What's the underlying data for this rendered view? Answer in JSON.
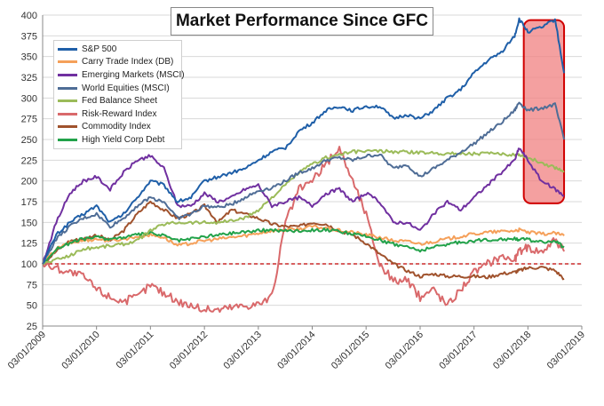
{
  "chart_data": {
    "type": "line",
    "title": "Market Performance Since GFC",
    "xlabel": "",
    "ylabel": "",
    "x_ticks": [
      "03/01/2009",
      "03/01/2010",
      "03/01/2011",
      "03/01/2012",
      "03/01/2013",
      "03/01/2014",
      "03/01/2015",
      "03/01/2016",
      "03/01/2017",
      "03/01/2018",
      "03/01/2019"
    ],
    "xlim": [
      "03/01/2009",
      "03/01/2019"
    ],
    "ylim": [
      25,
      400
    ],
    "y_ticks": [
      25,
      50,
      75,
      100,
      125,
      150,
      175,
      200,
      225,
      250,
      275,
      300,
      325,
      350,
      375,
      400
    ],
    "reference_line": {
      "y": 100,
      "style": "dashed",
      "color": "#c00000"
    },
    "highlight_box": {
      "x_start": "02/01/2018",
      "x_end": "11/01/2018",
      "color": "#f08080",
      "border": "#d00000"
    },
    "legend_position": "top-left",
    "x": [
      "03/01/2009",
      "06/01/2009",
      "09/01/2009",
      "12/01/2009",
      "03/01/2010",
      "06/01/2010",
      "09/01/2010",
      "12/01/2010",
      "03/01/2011",
      "06/01/2011",
      "09/01/2011",
      "12/01/2011",
      "03/01/2012",
      "06/01/2012",
      "09/01/2012",
      "12/01/2012",
      "03/01/2013",
      "06/01/2013",
      "09/01/2013",
      "12/01/2013",
      "03/01/2014",
      "06/01/2014",
      "09/01/2014",
      "12/01/2014",
      "03/01/2015",
      "06/01/2015",
      "09/01/2015",
      "12/01/2015",
      "03/01/2016",
      "06/01/2016",
      "09/01/2016",
      "12/01/2016",
      "03/01/2017",
      "06/01/2017",
      "09/01/2017",
      "12/01/2017",
      "01/01/2018",
      "03/01/2018",
      "06/01/2018",
      "09/01/2018",
      "11/01/2018"
    ],
    "series": [
      {
        "name": "S&P 500",
        "color": "#1f5fa8",
        "values": [
          100,
          135,
          150,
          160,
          170,
          150,
          160,
          180,
          200,
          195,
          175,
          180,
          200,
          205,
          210,
          215,
          225,
          235,
          240,
          260,
          270,
          285,
          290,
          285,
          290,
          290,
          275,
          280,
          275,
          285,
          300,
          310,
          330,
          345,
          355,
          375,
          395,
          380,
          385,
          395,
          330
        ]
      },
      {
        "name": "Carry Trade Index (DB)",
        "color": "#f5a05a",
        "values": [
          100,
          118,
          125,
          128,
          130,
          128,
          130,
          133,
          135,
          132,
          122,
          125,
          128,
          130,
          132,
          134,
          137,
          140,
          141,
          142,
          145,
          143,
          140,
          138,
          135,
          132,
          128,
          127,
          124,
          127,
          130,
          133,
          136,
          138,
          139,
          140,
          141,
          138,
          136,
          137,
          134
        ]
      },
      {
        "name": "Emerging Markets (MSCI)",
        "color": "#7030a0",
        "values": [
          100,
          150,
          185,
          200,
          205,
          190,
          210,
          225,
          230,
          215,
          170,
          170,
          185,
          175,
          180,
          190,
          195,
          170,
          175,
          180,
          170,
          185,
          190,
          175,
          185,
          175,
          150,
          150,
          140,
          160,
          175,
          165,
          180,
          195,
          210,
          225,
          240,
          225,
          200,
          190,
          182
        ]
      },
      {
        "name": "World Equities (MSCI)",
        "color": "#4f6d96",
        "values": [
          100,
          130,
          145,
          155,
          160,
          145,
          155,
          170,
          180,
          175,
          155,
          160,
          170,
          168,
          172,
          180,
          188,
          192,
          200,
          210,
          215,
          225,
          228,
          225,
          230,
          232,
          215,
          220,
          205,
          215,
          225,
          235,
          245,
          258,
          270,
          285,
          295,
          285,
          288,
          292,
          250
        ]
      },
      {
        "name": "Fed Balance Sheet",
        "color": "#9bbb59",
        "values": [
          100,
          105,
          110,
          118,
          120,
          122,
          124,
          128,
          140,
          148,
          150,
          150,
          150,
          150,
          152,
          155,
          165,
          180,
          195,
          210,
          220,
          228,
          232,
          235,
          236,
          236,
          235,
          235,
          234,
          234,
          233,
          233,
          233,
          233,
          232,
          232,
          232,
          228,
          222,
          216,
          212
        ]
      },
      {
        "name": "Risk-Reward Index",
        "color": "#d9696b",
        "values": [
          100,
          95,
          90,
          85,
          70,
          60,
          55,
          60,
          75,
          65,
          55,
          50,
          45,
          45,
          48,
          50,
          52,
          60,
          150,
          190,
          200,
          220,
          240,
          200,
          160,
          100,
          80,
          80,
          60,
          70,
          50,
          70,
          90,
          100,
          110,
          105,
          115,
          120,
          115,
          130,
          115
        ]
      },
      {
        "name": "Commodity Index",
        "color": "#a0522d",
        "values": [
          100,
          115,
          128,
          130,
          135,
          128,
          140,
          160,
          175,
          165,
          155,
          160,
          170,
          150,
          165,
          160,
          155,
          148,
          145,
          145,
          150,
          148,
          140,
          135,
          125,
          112,
          100,
          92,
          85,
          88,
          85,
          85,
          85,
          84,
          88,
          90,
          92,
          95,
          96,
          92,
          82
        ]
      },
      {
        "name": "High Yield Corp Debt",
        "color": "#22a24a",
        "values": [
          100,
          118,
          125,
          130,
          132,
          130,
          132,
          135,
          137,
          134,
          128,
          130,
          133,
          135,
          137,
          139,
          140,
          141,
          140,
          140,
          141,
          141,
          139,
          136,
          133,
          129,
          124,
          121,
          116,
          120,
          124,
          126,
          128,
          129,
          130,
          130,
          130,
          129,
          127,
          127,
          120
        ]
      }
    ]
  }
}
